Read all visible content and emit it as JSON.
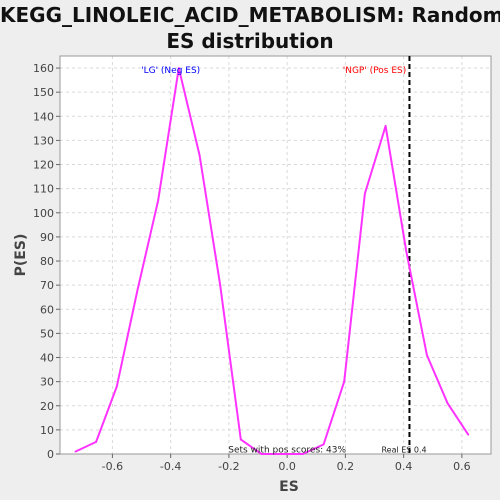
{
  "chart_data": {
    "type": "line",
    "title_lines": [
      "KEGG_LINOLEIC_ACID_METABOLISM: Random",
      "ES distribution"
    ],
    "xlabel": "ES",
    "ylabel": "P(ES)",
    "xlim": [
      -0.78,
      0.7
    ],
    "ylim": [
      0,
      165
    ],
    "xticks": [
      -0.6,
      -0.4,
      -0.2,
      0.0,
      0.2,
      0.4,
      0.6
    ],
    "xtick_labels": [
      "-0.6",
      "-0.4",
      "-0.2",
      "0.0",
      "0.2",
      "0.4",
      "0.6"
    ],
    "yticks": [
      0,
      10,
      20,
      30,
      40,
      50,
      60,
      70,
      80,
      90,
      100,
      110,
      120,
      130,
      140,
      150,
      160
    ],
    "ytick_labels": [
      "0",
      "10",
      "20",
      "30",
      "40",
      "50",
      "60",
      "70",
      "80",
      "90",
      "100",
      "110",
      "120",
      "130",
      "140",
      "150",
      "160"
    ],
    "grid": true,
    "series": [
      {
        "color": "#ff33ff",
        "x": [
          -0.727,
          -0.656,
          -0.585,
          -0.514,
          -0.443,
          -0.372,
          -0.301,
          -0.23,
          -0.159,
          -0.088,
          -0.017,
          0.054,
          0.125,
          0.196,
          0.267,
          0.338,
          0.409,
          0.48,
          0.551,
          0.622
        ],
        "y": [
          1,
          5,
          28,
          68,
          105,
          160,
          124,
          70,
          6,
          0,
          0,
          0,
          4,
          30,
          108,
          136,
          84,
          41,
          21,
          8
        ]
      }
    ],
    "real_es": {
      "x": 0.42,
      "color": "#000000",
      "label": "Real ES 0.4"
    },
    "annotations": [
      {
        "text": "'LG' (Neg ES)",
        "color": "#0000ff",
        "x": -0.4,
        "y": 158
      },
      {
        "text": "'NGP' (Pos ES)",
        "color": "#ff0000",
        "x": 0.3,
        "y": 158
      },
      {
        "text": "Sets with pos scores: 43%",
        "color": "#222222",
        "x": 0.0,
        "y": 0.6
      }
    ]
  }
}
